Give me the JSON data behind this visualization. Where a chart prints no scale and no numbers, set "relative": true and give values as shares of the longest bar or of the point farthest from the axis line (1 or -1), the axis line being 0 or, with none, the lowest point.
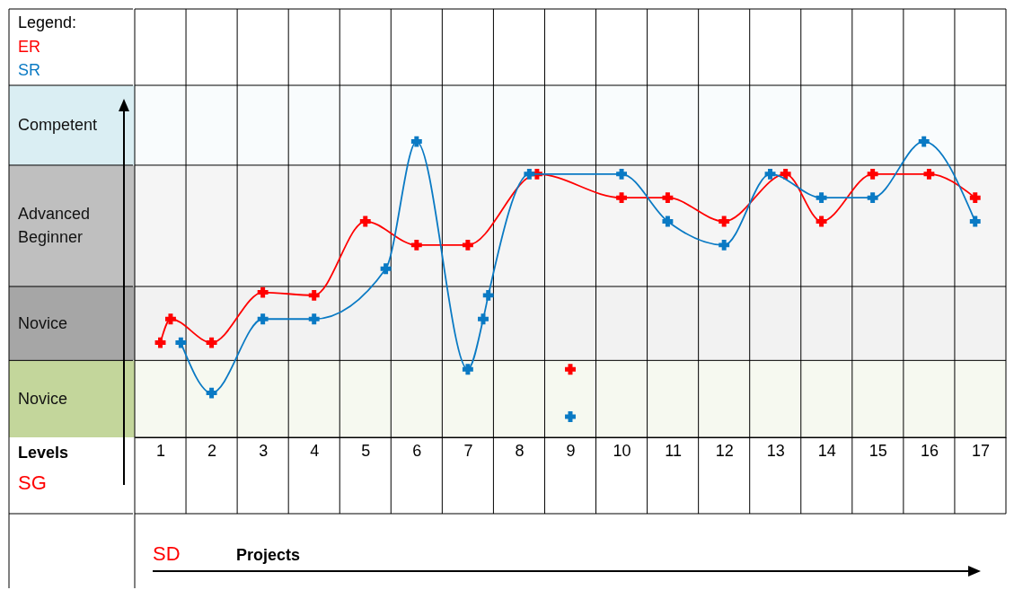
{
  "chart_data": {
    "type": "line",
    "relative": true,
    "legend_title": "Legend:",
    "legend": "top left",
    "ylabel": "Levels",
    "annotations": [
      "SG",
      "SD",
      "Projects"
    ],
    "marker": "cross",
    "grid": true,
    "xlim": [
      0.5,
      17.5
    ],
    "xticks": [
      1,
      2,
      3,
      4,
      5,
      6,
      7,
      8,
      9,
      10,
      11,
      12,
      13,
      14,
      15,
      16,
      17
    ],
    "bands": [
      {
        "axis": "y",
        "from": 0,
        "to": 0.26,
        "label": "Novice",
        "color": "#c3d69b"
      },
      {
        "axis": "y",
        "from": 0.26,
        "to": 0.51,
        "label": "Novice",
        "color": "#a6a6a6"
      },
      {
        "axis": "y",
        "from": 0.51,
        "to": 0.92,
        "label": "Advanced Beginner",
        "color": "#bfbfbf"
      },
      {
        "axis": "y",
        "from": 0.92,
        "to": 1.19,
        "label": "Competent",
        "color": "#daeef3"
      }
    ],
    "series": [
      {
        "name": "ER",
        "color": "#ff0000",
        "x": [
          1.0,
          1.2,
          2,
          3,
          4,
          5,
          6,
          7,
          8.35,
          10,
          10.9,
          12,
          13.2,
          13.9,
          14.9,
          16,
          16.9
        ],
        "values": [
          0.32,
          0.4,
          0.32,
          0.49,
          0.48,
          0.73,
          0.65,
          0.65,
          0.89,
          0.81,
          0.81,
          0.73,
          0.89,
          0.73,
          0.89,
          0.89,
          0.81
        ]
      },
      {
        "name": "SR",
        "color": "#0a7ac4",
        "x": [
          1.4,
          2,
          3,
          4,
          5.4,
          6,
          7,
          7.3,
          7.4,
          8.2,
          10,
          10.9,
          12,
          12.9,
          13.9,
          14.9,
          15.9,
          16.9
        ],
        "values": [
          0.32,
          0.15,
          0.4,
          0.4,
          0.57,
          1,
          0.23,
          0.4,
          0.48,
          0.89,
          0.89,
          0.73,
          0.65,
          0.89,
          0.81,
          0.81,
          1,
          0.73
        ]
      },
      {
        "type": "scatter",
        "color": "#ff0000",
        "x": [
          9
        ],
        "values": [
          0.23
        ]
      },
      {
        "type": "scatter",
        "color": "#0a7ac4",
        "x": [
          9
        ],
        "values": [
          0.07
        ]
      }
    ]
  }
}
